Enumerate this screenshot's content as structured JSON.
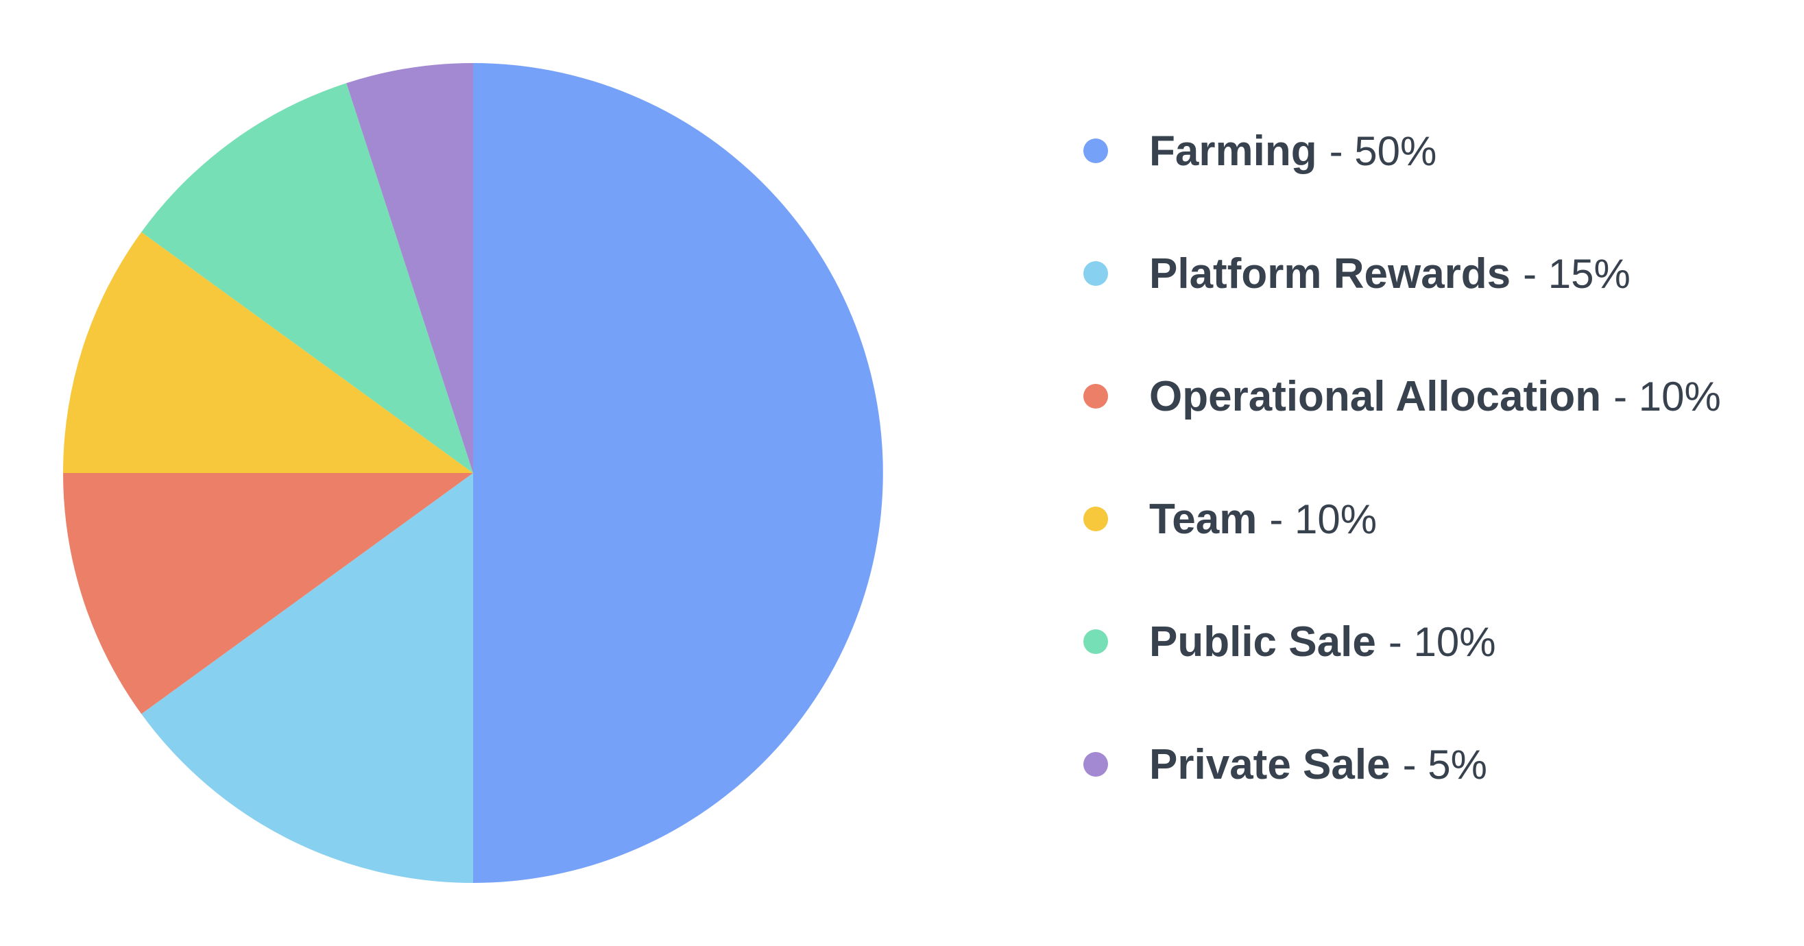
{
  "chart_data": {
    "type": "pie",
    "title": "",
    "start_angle_deg": 0,
    "direction": "clockwise",
    "legend_position": "right",
    "slices": [
      {
        "label": "Farming",
        "value": 50,
        "value_text": "- 50%",
        "color": "#76a1f9"
      },
      {
        "label": "Platform Rewards",
        "value": 15,
        "value_text": "- 15%",
        "color": "#87d0ef"
      },
      {
        "label": "Operational Allocation",
        "value": 10,
        "value_text": "- 10%",
        "color": "#ec7f67"
      },
      {
        "label": "Team",
        "value": 10,
        "value_text": "- 10%",
        "color": "#f7c73c"
      },
      {
        "label": "Public Sale",
        "value": 10,
        "value_text": "- 10%",
        "color": "#76dfb5"
      },
      {
        "label": "Private Sale",
        "value": 5,
        "value_text": "- 5%",
        "color": "#a388d2"
      }
    ]
  }
}
